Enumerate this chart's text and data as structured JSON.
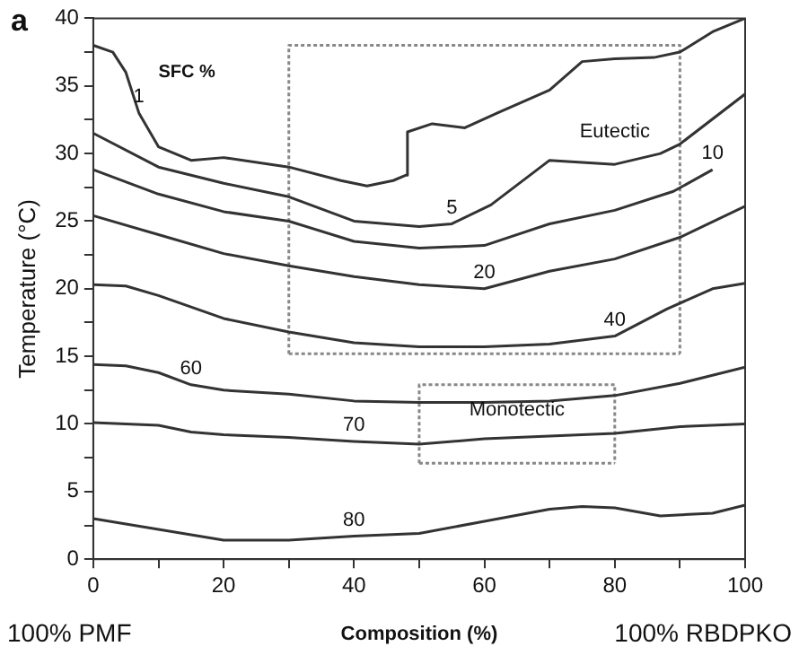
{
  "chart_data": {
    "type": "line",
    "xlabel": "Composition (%)",
    "ylabel": "Temperature (°C)",
    "xlim": [
      0,
      100
    ],
    "ylim": [
      0,
      40
    ],
    "xticks": [
      0,
      {
        "value": 10,
        "label": null
      },
      20,
      {
        "value": 30,
        "label": null
      },
      40,
      {
        "value": 50,
        "label": null
      },
      60,
      {
        "value": 70,
        "label": null
      },
      80,
      {
        "value": 90,
        "label": null
      },
      100
    ],
    "yticks": [
      0,
      {
        "value": 2.5,
        "label": null
      },
      5,
      {
        "value": 7.5,
        "label": null
      },
      10,
      {
        "value": 12.5,
        "label": null
      },
      15,
      {
        "value": 17.5,
        "label": null
      },
      20,
      {
        "value": 22.5,
        "label": null
      },
      25,
      {
        "value": 27.5,
        "label": null
      },
      30,
      {
        "value": 32.5,
        "label": null
      },
      35,
      {
        "value": 37.5,
        "label": null
      },
      40
    ],
    "grid": false,
    "legend": false,
    "marker": "none",
    "line_style": "solid",
    "series": [
      {
        "color": "#333333",
        "x": [
          0,
          3,
          5,
          7,
          10,
          15,
          20,
          30,
          38,
          42,
          46,
          48,
          48.2,
          52,
          57,
          62,
          70,
          75,
          80,
          86,
          90,
          95,
          100
        ],
        "values": [
          38,
          37.5,
          36,
          33,
          30.5,
          29.5,
          29.7,
          29,
          28,
          27.6,
          28,
          28.4,
          31.6,
          32.2,
          31.9,
          33,
          34.7,
          36.8,
          37,
          37.1,
          37.5,
          39,
          40
        ]
      },
      {
        "color": "#333333",
        "x": [
          0,
          10,
          20,
          30,
          40,
          50,
          55,
          61,
          70,
          80,
          87,
          90,
          100
        ],
        "values": [
          31.5,
          29,
          27.8,
          26.8,
          25,
          24.6,
          24.8,
          26.2,
          29.5,
          29.2,
          30,
          30.7,
          34.4
        ]
      },
      {
        "color": "#333333",
        "x": [
          0,
          10,
          20,
          30,
          40,
          50,
          60,
          70,
          80,
          89,
          95
        ],
        "values": [
          28.8,
          27,
          25.7,
          25,
          23.5,
          23,
          23.2,
          24.8,
          25.8,
          27.2,
          28.8
        ]
      },
      {
        "color": "#333333",
        "x": [
          0,
          10,
          20,
          30,
          40,
          50,
          60,
          70,
          80,
          90,
          100
        ],
        "values": [
          25.4,
          24,
          22.6,
          21.7,
          20.9,
          20.3,
          20,
          21.3,
          22.2,
          23.8,
          26.1
        ]
      },
      {
        "color": "#333333",
        "x": [
          0,
          5,
          10,
          20,
          30,
          40,
          50,
          60,
          70,
          80,
          88,
          95,
          100
        ],
        "values": [
          20.3,
          20.2,
          19.5,
          17.8,
          16.8,
          16,
          15.7,
          15.7,
          15.9,
          16.5,
          18.5,
          20,
          20.4
        ]
      },
      {
        "color": "#333333",
        "x": [
          0,
          5,
          10,
          15,
          20,
          30,
          40,
          50,
          60,
          70,
          80,
          90,
          100
        ],
        "values": [
          14.4,
          14.3,
          13.8,
          12.9,
          12.5,
          12.2,
          11.7,
          11.6,
          11.6,
          11.7,
          12.1,
          13,
          14.2
        ]
      },
      {
        "color": "#333333",
        "x": [
          0,
          10,
          15,
          20,
          30,
          40,
          50,
          60,
          70,
          80,
          90,
          100
        ],
        "values": [
          10.1,
          9.9,
          9.4,
          9.2,
          9,
          8.7,
          8.5,
          8.9,
          9.1,
          9.3,
          9.8,
          10
        ]
      },
      {
        "color": "#333333",
        "x": [
          0,
          10,
          20,
          30,
          40,
          50,
          60,
          70,
          75,
          80,
          87,
          95,
          100
        ],
        "values": [
          3,
          2.2,
          1.4,
          1.4,
          1.7,
          1.9,
          2.8,
          3.7,
          3.9,
          3.8,
          3.2,
          3.4,
          4
        ]
      },
      {
        "type": "line",
        "line_style": "dotted",
        "color": "#888888",
        "x": [
          30,
          30,
          90,
          90
        ],
        "values": [
          15.2,
          38,
          38,
          15.2
        ]
      },
      {
        "type": "line",
        "line_style": "dotted",
        "color": "#888888",
        "x": [
          30,
          90
        ],
        "values": [
          15.2,
          15.2
        ]
      },
      {
        "type": "line",
        "line_style": "dotted",
        "color": "#888888",
        "x": [
          50,
          50,
          80,
          80
        ],
        "values": [
          7.1,
          12.9,
          12.9,
          7.1
        ]
      },
      {
        "type": "line",
        "line_style": "dotted",
        "color": "#888888",
        "x": [
          50,
          80
        ],
        "values": [
          7.1,
          7.1
        ]
      }
    ],
    "annotations": [
      "a",
      "100% PMF",
      "100% RBDPKO",
      "SFC %",
      "Eutectic",
      "Monotectic",
      {
        "text": "1",
        "x": 7,
        "y": 33
      },
      {
        "text": "5",
        "x": 55,
        "y": 24.8
      },
      {
        "text": "10",
        "x": 95,
        "y": 28.8
      },
      {
        "text": "20",
        "x": 60,
        "y": 20
      },
      {
        "text": "40",
        "x": 80,
        "y": 16.5
      },
      {
        "text": "60",
        "x": 15,
        "y": 12.9
      },
      {
        "text": "70",
        "x": 40,
        "y": 8.7
      },
      {
        "text": "80",
        "x": 40,
        "y": 1.7
      }
    ]
  }
}
